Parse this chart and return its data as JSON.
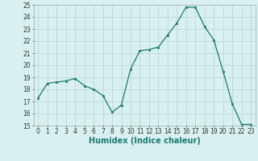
{
  "x": [
    0,
    1,
    2,
    3,
    4,
    5,
    6,
    7,
    8,
    9,
    10,
    11,
    12,
    13,
    14,
    15,
    16,
    17,
    18,
    19,
    20,
    21,
    22,
    23
  ],
  "y": [
    17.3,
    18.5,
    18.6,
    18.7,
    18.9,
    18.3,
    18.0,
    17.5,
    16.1,
    16.7,
    19.7,
    21.2,
    21.3,
    21.5,
    22.5,
    23.5,
    24.8,
    24.8,
    23.2,
    22.1,
    19.5,
    16.8,
    15.1,
    15.1
  ],
  "line_color": "#1a7a6e",
  "marker": "s",
  "marker_size": 2,
  "bg_color": "#d8f0f0",
  "grid_color": "#b8d8d8",
  "xlabel": "Humidex (Indice chaleur)",
  "ylim": [
    15,
    25
  ],
  "xlim": [
    -0.5,
    23.5
  ],
  "yticks": [
    15,
    16,
    17,
    18,
    19,
    20,
    21,
    22,
    23,
    24,
    25
  ],
  "xticks": [
    0,
    1,
    2,
    3,
    4,
    5,
    6,
    7,
    8,
    9,
    10,
    11,
    12,
    13,
    14,
    15,
    16,
    17,
    18,
    19,
    20,
    21,
    22,
    23
  ],
  "tick_fontsize": 5.5,
  "xlabel_fontsize": 7.0
}
